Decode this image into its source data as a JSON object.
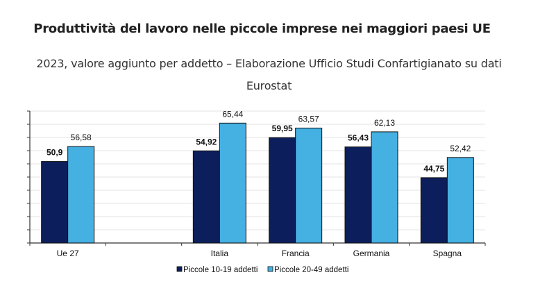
{
  "title": "Produttività del lavoro nelle piccole imprese nei maggiori paesi UE",
  "subtitle": "2023, valore aggiunto per addetto – Elaborazione Ufficio Studi Confartigianato su dati Eurostat",
  "chart_data": {
    "type": "bar",
    "categories": [
      "Ue 27",
      "",
      "Italia",
      "Francia",
      "Germania",
      "Spagna"
    ],
    "series": [
      {
        "name": "Piccole 10-19 addetti",
        "color": "#0c1f5c",
        "values": [
          50.9,
          null,
          54.92,
          59.95,
          56.43,
          44.75
        ],
        "labels": [
          "50,9",
          "",
          "54,92",
          "59,95",
          "56,43",
          "44,75"
        ]
      },
      {
        "name": "Piccole 20-49 addetti",
        "color": "#45b0e2",
        "values": [
          56.58,
          null,
          65.44,
          63.57,
          62.13,
          52.42
        ],
        "labels": [
          "56,58",
          "",
          "65,44",
          "63,57",
          "62,13",
          "52,42"
        ]
      }
    ],
    "ylim": [
      20,
      70
    ],
    "ytick_step": 5,
    "ytick_labels_shown": false,
    "grid": true,
    "legend": "bottom"
  }
}
